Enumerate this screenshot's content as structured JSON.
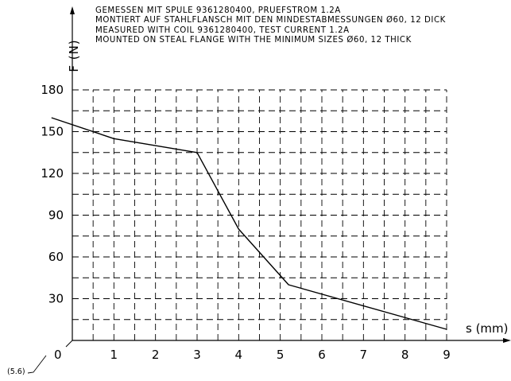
{
  "notes": [
    "GEMESSEN MIT SPULE 9361280400, PRUEFSTROM 1.2A",
    "MONTIERT AUF STAHLFLANSCH MIT DEN MINDESTABMESSUNGEN Ø60, 12 DICK",
    "MEASURED WITH COIL 9361280400, TEST CURRENT 1.2A",
    "MOUNTED ON STEAL FLANGE WITH THE MINIMUM SIZES Ø60, 12 THICK"
  ],
  "origin_label": "0",
  "reference_label": "(5.6)",
  "chart_data": {
    "type": "line",
    "title": "",
    "xlabel": "s (mm)",
    "ylabel": "F (N)",
    "xlim": [
      0,
      9
    ],
    "ylim": [
      0,
      180
    ],
    "grid": true,
    "x_ticks": [
      "1",
      "2",
      "3",
      "4",
      "5",
      "6",
      "7",
      "8",
      "9"
    ],
    "y_ticks": [
      "30",
      "60",
      "90",
      "120",
      "150",
      "180"
    ],
    "series": [
      {
        "x": [
          -0.5,
          1,
          3,
          4,
          5.2,
          9
        ],
        "y": [
          160,
          145,
          135,
          80,
          40,
          8
        ]
      }
    ]
  }
}
